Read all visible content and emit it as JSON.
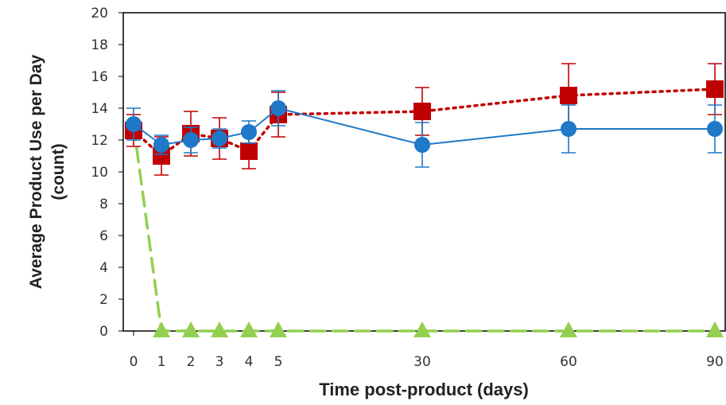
{
  "chart_data": {
    "type": "line",
    "xlabel": "Time post-product (days)",
    "ylabel_lines": [
      "Average Product Use per Day",
      "(count)"
    ],
    "ylim": [
      0,
      20
    ],
    "yticks": [
      0,
      2,
      4,
      6,
      8,
      10,
      12,
      14,
      16,
      18,
      20
    ],
    "x_categories": [
      "0",
      "1",
      "2",
      "3",
      "4",
      "5",
      "30",
      "60",
      "90"
    ],
    "grid": false,
    "legend": "none",
    "series": [
      {
        "marker": "circle",
        "line_style": "solid",
        "color": "#1f78c8",
        "values": [
          13.0,
          11.7,
          12.0,
          12.1,
          12.5,
          14.0,
          11.7,
          12.7,
          12.7
        ],
        "error": [
          1.0,
          0.6,
          0.8,
          0.6,
          0.7,
          1.1,
          1.4,
          1.5,
          1.5
        ]
      },
      {
        "marker": "square",
        "line_style": "dotted",
        "color": "#c00000",
        "values": [
          12.6,
          11.0,
          12.4,
          12.1,
          11.3,
          13.6,
          13.8,
          14.8,
          15.2
        ],
        "error": [
          1.0,
          1.2,
          1.4,
          1.3,
          1.1,
          1.4,
          1.5,
          2.0,
          1.6
        ]
      },
      {
        "marker": "triangle",
        "line_style": "dashed",
        "color": "#92d050",
        "values": [
          12.9,
          0,
          0,
          0,
          0,
          0,
          0,
          0,
          0
        ],
        "error": null
      }
    ]
  }
}
